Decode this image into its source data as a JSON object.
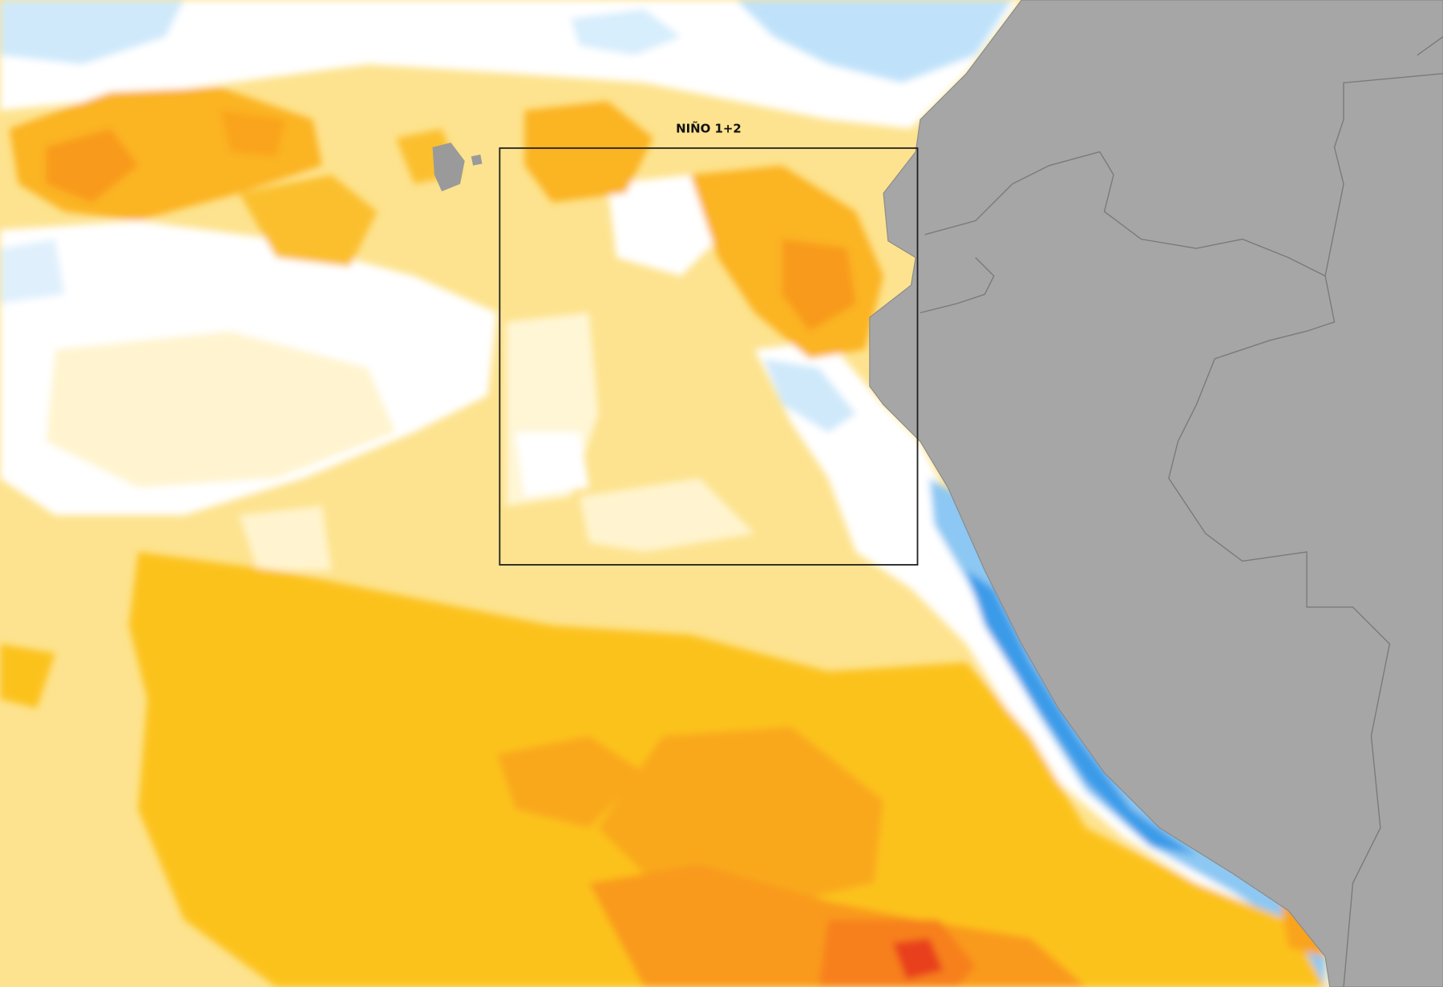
{
  "map": {
    "region_label": "NIÑO 1+2"
  }
}
